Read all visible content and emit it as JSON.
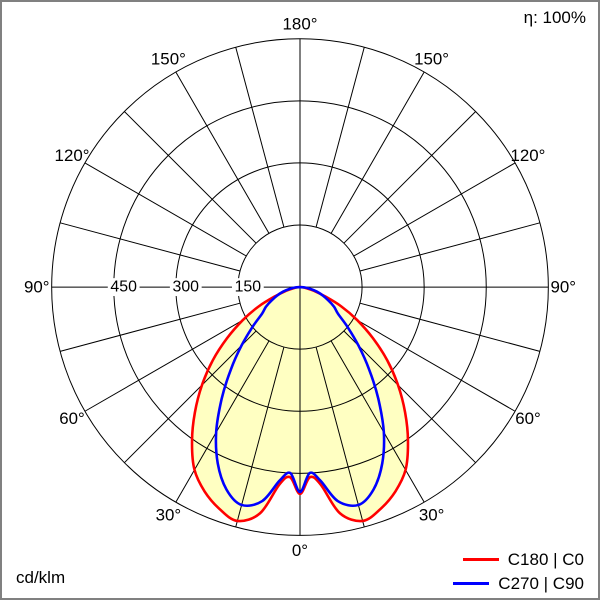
{
  "chart_data": {
    "type": "polar",
    "subtype": "luminous-intensity-distribution",
    "unit": "cd/klm",
    "efficiency": "η: 100%",
    "r_max": 600,
    "spoke_step_deg": 15,
    "radial_ticks": [
      150,
      300,
      450,
      600
    ],
    "radial_tick_labels": [
      "450",
      "300",
      "150"
    ],
    "angle_labels_deg": [
      0,
      30,
      60,
      90,
      120,
      150,
      180
    ],
    "angle_label_texts": [
      "0°",
      "30°",
      "60°",
      "90°",
      "120°",
      "150°",
      "180°"
    ],
    "grid_color": "#000000",
    "fill_color": "#ffffc2",
    "series": [
      {
        "name": "C180 | C0",
        "color": "#ff0000",
        "filled": true,
        "gamma_deg": [
          0,
          3,
          6,
          10,
          15,
          20,
          25,
          30,
          35,
          40,
          45,
          50,
          55,
          60,
          65,
          70,
          75,
          80,
          85,
          90
        ],
        "values": [
          500,
          460,
          480,
          555,
          585,
          570,
          545,
          510,
          455,
          395,
          335,
          275,
          215,
          160,
          110,
          62,
          35,
          16,
          6,
          0
        ]
      },
      {
        "name": "C270 | C90",
        "color": "#0000ff",
        "filled": false,
        "gamma_deg": [
          0,
          3,
          6,
          10,
          15,
          20,
          25,
          30,
          35,
          40,
          45,
          50,
          55,
          60,
          65,
          70,
          75,
          80,
          85,
          90
        ],
        "values": [
          495,
          450,
          470,
          525,
          545,
          520,
          470,
          405,
          330,
          260,
          200,
          150,
          112,
          95,
          75,
          58,
          42,
          26,
          12,
          0
        ]
      }
    ]
  }
}
